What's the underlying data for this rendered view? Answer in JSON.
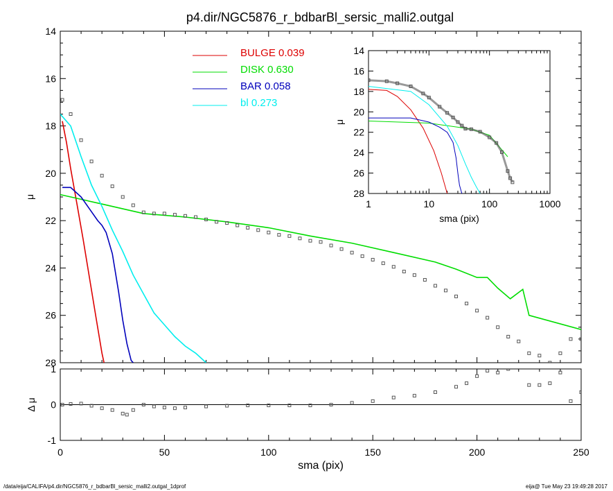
{
  "title": "p4.dir/NGC5876_r_bdbarBl_sersic_malli2.outgal",
  "footer": {
    "left": "/data/eija/CALIFA/p4.dir/NGC5876_r_bdbarBl_sersic_malli2.outgal_1dprof",
    "right": "eija@  Tue May 23 19:49:28 2017"
  },
  "colors": {
    "bulge": "#dd0000",
    "disk": "#00dd00",
    "bar": "#0000bb",
    "bl": "#00eeee",
    "data": "#555555"
  },
  "chart_data": [
    {
      "type": "line",
      "panel": "main",
      "xlabel": "sma (pix)",
      "ylabel": "μ",
      "xlim": [
        0,
        250
      ],
      "ylim": [
        28,
        14
      ],
      "y_inverted": true,
      "xticks": [
        "0",
        "50",
        "100",
        "150",
        "200",
        "250"
      ],
      "yticks": [
        "14",
        "16",
        "18",
        "20",
        "22",
        "24",
        "26",
        "28"
      ],
      "legend": [
        {
          "name": "BULGE",
          "value": "0.039",
          "color": "#dd0000"
        },
        {
          "name": "DISK",
          "value": "0.630",
          "color": "#00dd00"
        },
        {
          "name": "BAR",
          "value": "0.058",
          "color": "#0000bb"
        },
        {
          "name": "bl",
          "value": "0.273",
          "color": "#00eeee"
        }
      ],
      "series": [
        {
          "name": "BULGE",
          "color": "#dd0000",
          "x": [
            1,
            3,
            5,
            8,
            11,
            14,
            17,
            20,
            21
          ],
          "y": [
            17.8,
            18.7,
            19.8,
            21.3,
            22.8,
            24.4,
            26.0,
            27.6,
            28.0
          ]
        },
        {
          "name": "DISK",
          "color": "#00dd00",
          "x": [
            0,
            20,
            40,
            60,
            80,
            100,
            120,
            140,
            160,
            180,
            190,
            200,
            205,
            210,
            216,
            222,
            225,
            250
          ],
          "y": [
            20.9,
            21.3,
            21.7,
            21.85,
            22.05,
            22.3,
            22.65,
            22.95,
            23.35,
            23.75,
            24.05,
            24.4,
            24.4,
            24.85,
            25.3,
            24.9,
            26.0,
            26.6
          ]
        },
        {
          "name": "BAR",
          "color": "#0000bb",
          "x": [
            1,
            5,
            10,
            14,
            18,
            20,
            22,
            25,
            28,
            30,
            32,
            34,
            35
          ],
          "y": [
            20.6,
            20.6,
            21.0,
            21.5,
            22.0,
            22.2,
            22.5,
            23.4,
            25.0,
            26.2,
            27.2,
            27.9,
            28.0
          ]
        },
        {
          "name": "bl",
          "color": "#00eeee",
          "x": [
            0,
            5,
            10,
            15,
            20,
            25,
            30,
            35,
            40,
            45,
            50,
            55,
            60,
            65,
            70
          ],
          "y": [
            17.5,
            18.0,
            19.3,
            20.5,
            21.4,
            22.4,
            23.3,
            24.3,
            25.1,
            25.9,
            26.4,
            26.9,
            27.3,
            27.6,
            28.0
          ]
        },
        {
          "name": "data",
          "color": "#555555",
          "x": [
            1,
            5,
            10,
            15,
            20,
            25,
            30,
            35,
            40,
            45,
            50,
            55,
            60,
            65,
            70,
            75,
            80,
            85,
            90,
            95,
            100,
            105,
            110,
            115,
            120,
            125,
            130,
            135,
            140,
            145,
            150,
            155,
            160,
            165,
            170,
            175,
            180,
            185,
            190,
            195,
            200,
            205,
            210,
            215,
            220,
            225,
            230,
            235,
            240,
            245,
            250
          ],
          "y": [
            16.9,
            17.5,
            18.6,
            19.5,
            20.1,
            20.55,
            21.0,
            21.35,
            21.65,
            21.7,
            21.7,
            21.75,
            21.8,
            21.85,
            21.95,
            22.05,
            22.1,
            22.2,
            22.3,
            22.4,
            22.5,
            22.6,
            22.65,
            22.75,
            22.85,
            22.9,
            23.05,
            23.2,
            23.35,
            23.5,
            23.65,
            23.8,
            23.95,
            24.15,
            24.3,
            24.5,
            24.75,
            24.95,
            25.2,
            25.5,
            25.8,
            26.1,
            26.5,
            26.9,
            27.1,
            27.6,
            27.7,
            28.0,
            27.6,
            27.0,
            27.0
          ]
        }
      ]
    },
    {
      "type": "scatter",
      "panel": "residual",
      "xlabel": "sma (pix)",
      "ylabel": "Δ μ",
      "xlim": [
        0,
        250
      ],
      "ylim": [
        -1,
        1
      ],
      "xticks": [
        "0",
        "50",
        "100",
        "150",
        "200",
        "250"
      ],
      "yticks": [
        "1",
        "0",
        "-1"
      ],
      "zero_line": true,
      "series": [
        {
          "name": "residual",
          "color": "#555555",
          "x": [
            1,
            5,
            10,
            15,
            20,
            25,
            30,
            32,
            35,
            40,
            45,
            50,
            55,
            60,
            70,
            80,
            90,
            100,
            110,
            120,
            130,
            140,
            150,
            160,
            170,
            180,
            190,
            195,
            200,
            205,
            210,
            215,
            225,
            230,
            235,
            240,
            245,
            250
          ],
          "y": [
            0.0,
            0.02,
            0.03,
            -0.03,
            -0.1,
            -0.15,
            -0.25,
            -0.28,
            -0.15,
            0.0,
            -0.05,
            -0.08,
            -0.1,
            -0.08,
            -0.05,
            -0.03,
            -0.02,
            -0.02,
            -0.02,
            -0.02,
            0.0,
            0.05,
            0.1,
            0.2,
            0.25,
            0.35,
            0.5,
            0.6,
            0.8,
            0.95,
            0.9,
            1.0,
            0.55,
            0.55,
            0.6,
            0.9,
            0.1,
            0.35
          ]
        }
      ]
    },
    {
      "type": "line",
      "panel": "inset",
      "xlabel": "sma (pix)",
      "ylabel": "μ",
      "xscale": "log",
      "xlim": [
        1,
        1000
      ],
      "ylim": [
        28,
        14
      ],
      "y_inverted": true,
      "xticks": [
        "1",
        "10",
        "100",
        "1000"
      ],
      "yticks": [
        "14",
        "16",
        "18",
        "20",
        "22",
        "24",
        "26",
        "28"
      ],
      "series": [
        {
          "name": "BULGE",
          "color": "#dd0000",
          "x": [
            1,
            2,
            3,
            5,
            8,
            12,
            16,
            20
          ],
          "y": [
            17.8,
            17.9,
            18.5,
            19.8,
            21.6,
            23.8,
            26.0,
            28.0
          ]
        },
        {
          "name": "DISK",
          "color": "#00dd00",
          "x": [
            1,
            10,
            30,
            50,
            100,
            200
          ],
          "y": [
            20.9,
            21.1,
            21.5,
            21.7,
            22.3,
            24.4
          ]
        },
        {
          "name": "BAR",
          "color": "#0000bb",
          "x": [
            1,
            5,
            10,
            15,
            20,
            25,
            28,
            30,
            32,
            35
          ],
          "y": [
            20.6,
            20.6,
            21.0,
            21.5,
            22.0,
            23.0,
            24.5,
            26.0,
            27.2,
            28.0
          ]
        },
        {
          "name": "bl",
          "color": "#00eeee",
          "x": [
            1,
            5,
            10,
            20,
            30,
            40,
            50,
            60,
            70
          ],
          "y": [
            17.5,
            18.0,
            19.3,
            21.4,
            23.3,
            25.1,
            26.4,
            27.3,
            28.0
          ]
        },
        {
          "name": "data",
          "color": "#555555",
          "x": [
            1,
            2,
            3,
            5,
            8,
            10,
            15,
            20,
            25,
            30,
            35,
            40,
            50,
            70,
            100,
            130,
            160,
            200,
            220,
            240
          ],
          "y": [
            16.9,
            17.0,
            17.2,
            17.5,
            18.2,
            18.6,
            19.5,
            20.1,
            20.55,
            21.0,
            21.35,
            21.65,
            21.7,
            21.95,
            22.5,
            23.05,
            23.95,
            25.8,
            26.5,
            26.9
          ]
        }
      ]
    }
  ]
}
